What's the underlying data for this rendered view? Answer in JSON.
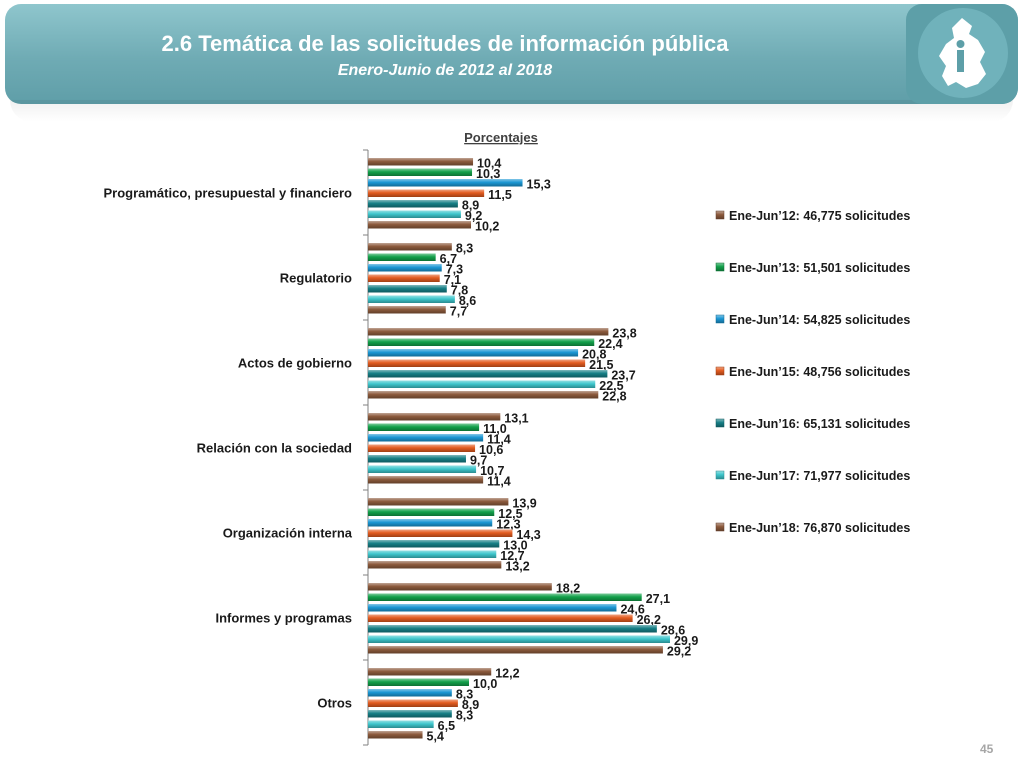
{
  "header": {
    "title": "2.6 Temática de las solicitudes de información pública",
    "subtitle": "Enero-Junio de 2012 al 2018"
  },
  "page_number": "45",
  "chart_data": {
    "type": "bar",
    "orientation": "horizontal",
    "axis_title": "Porcentajes",
    "categories": [
      "Programático, presupuestal y financiero",
      "Regulatorio",
      "Actos de gobierno",
      "Relación con la sociedad",
      "Organización interna",
      "Informes y programas",
      "Otros"
    ],
    "series": [
      {
        "name": "Ene-Jun’12: 46,775 solicitudes",
        "color": "#8c5a3c",
        "values": [
          10.4,
          8.3,
          23.8,
          13.1,
          13.9,
          18.2,
          12.2
        ]
      },
      {
        "name": "Ene-Jun’13: 51,501 solicitudes",
        "color": "#12a04a",
        "values": [
          10.3,
          6.7,
          22.4,
          11.0,
          12.5,
          27.1,
          10.0
        ]
      },
      {
        "name": "Ene-Jun’14: 54,825 solicitudes",
        "color": "#1b97d4",
        "values": [
          15.3,
          7.3,
          20.8,
          11.4,
          12.3,
          24.6,
          8.3
        ]
      },
      {
        "name": "Ene-Jun’15: 48,756 solicitudes",
        "color": "#e35b1f",
        "values": [
          11.5,
          7.1,
          21.5,
          10.6,
          14.3,
          26.2,
          8.9
        ]
      },
      {
        "name": "Ene-Jun’16: 65,131 solicitudes",
        "color": "#167f86",
        "values": [
          8.9,
          7.8,
          23.7,
          9.7,
          13.0,
          28.6,
          8.3
        ]
      },
      {
        "name": "Ene-Jun’17: 71,977 solicitudes",
        "color": "#3ec6cc",
        "values": [
          9.2,
          8.6,
          22.5,
          10.7,
          12.7,
          29.9,
          6.5
        ]
      },
      {
        "name": "Ene-Jun’18: 76,870 solicitudes",
        "color": "#8c5a3c",
        "values": [
          10.2,
          7.7,
          22.8,
          11.4,
          13.2,
          29.2,
          5.4
        ]
      }
    ],
    "value_labels": [
      [
        "10,4",
        "8,3",
        "23,8",
        "13,1",
        "13,9",
        "18,2",
        "12,2"
      ],
      [
        "10,3",
        "6,7",
        "22,4",
        "11,0",
        "12,5",
        "27,1",
        "10,0"
      ],
      [
        "15,3",
        "7,3",
        "20,8",
        "11,4",
        "12,3",
        "24,6",
        "8,3"
      ],
      [
        "11,5",
        "7,1",
        "21,5",
        "10,6",
        "14,3",
        "26,2",
        "8,9"
      ],
      [
        "8,9",
        "7,8",
        "23,7",
        "9,7",
        "13,0",
        "28,6",
        "8,3"
      ],
      [
        "9,2",
        "8,6",
        "22,5",
        "10,7",
        "12,7",
        "29,9",
        "6,5"
      ],
      [
        "10,2",
        "7,7",
        "22,8",
        "11,4",
        "13,2",
        "29,2",
        "5,4"
      ]
    ],
    "xlim": [
      0,
      30
    ],
    "grid": false,
    "legend_position": "right"
  }
}
